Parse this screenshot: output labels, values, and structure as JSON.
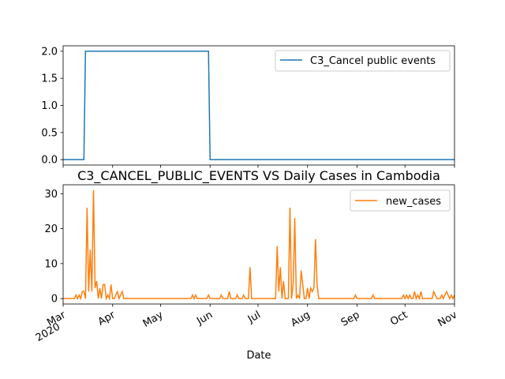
{
  "chart_data": [
    {
      "type": "line",
      "title": "",
      "xlabel": "",
      "ylabel": "",
      "ylim": [
        -0.1,
        2.1
      ],
      "yticks": [
        "0.0",
        "0.5",
        "1.0",
        "1.5",
        "2.0"
      ],
      "ytick_values": [
        0.0,
        0.5,
        1.0,
        1.5,
        2.0
      ],
      "legend_position": "top-right",
      "series": [
        {
          "name": "C3_Cancel public events",
          "color": "#1f77b4",
          "points": [
            [
              "2020-03-01",
              0
            ],
            [
              "2020-03-14",
              0
            ],
            [
              "2020-03-15",
              2
            ],
            [
              "2020-05-31",
              2
            ],
            [
              "2020-06-01",
              0
            ],
            [
              "2020-11-01",
              0
            ]
          ]
        }
      ]
    },
    {
      "type": "line",
      "title": "C3_CANCEL_PUBLIC_EVENTS VS Daily Cases in Cambodia",
      "xlabel": "Date",
      "ylabel": "",
      "ylim": [
        -1.55,
        32.55
      ],
      "yticks": [
        "0",
        "10",
        "20",
        "30"
      ],
      "ytick_values": [
        0,
        10,
        20,
        30
      ],
      "xlim": [
        "2020-03-01",
        "2020-11-01"
      ],
      "xticks": [
        {
          "date": "2020-03-01",
          "label": "Mar",
          "sublabel": "2020"
        },
        {
          "date": "2020-04-01",
          "label": "Apr",
          "sublabel": ""
        },
        {
          "date": "2020-05-01",
          "label": "May",
          "sublabel": ""
        },
        {
          "date": "2020-06-01",
          "label": "Jun",
          "sublabel": ""
        },
        {
          "date": "2020-07-01",
          "label": "Jul",
          "sublabel": ""
        },
        {
          "date": "2020-08-01",
          "label": "Aug",
          "sublabel": ""
        },
        {
          "date": "2020-09-01",
          "label": "Sep",
          "sublabel": ""
        },
        {
          "date": "2020-10-01",
          "label": "Oct",
          "sublabel": ""
        },
        {
          "date": "2020-11-01",
          "label": "Nov",
          "sublabel": ""
        }
      ],
      "legend_position": "top-right",
      "series": [
        {
          "name": "new_cases",
          "color": "#ff7f0e",
          "points": [
            [
              "2020-03-01",
              0
            ],
            [
              "2020-03-08",
              0
            ],
            [
              "2020-03-09",
              1
            ],
            [
              "2020-03-10",
              0
            ],
            [
              "2020-03-11",
              1
            ],
            [
              "2020-03-12",
              0
            ],
            [
              "2020-03-13",
              2
            ],
            [
              "2020-03-14",
              2
            ],
            [
              "2020-03-15",
              0
            ],
            [
              "2020-03-16",
              26
            ],
            [
              "2020-03-17",
              2
            ],
            [
              "2020-03-18",
              14
            ],
            [
              "2020-03-19",
              2
            ],
            [
              "2020-03-20",
              31
            ],
            [
              "2020-03-21",
              3
            ],
            [
              "2020-03-22",
              5
            ],
            [
              "2020-03-23",
              0
            ],
            [
              "2020-03-24",
              3
            ],
            [
              "2020-03-25",
              0
            ],
            [
              "2020-03-26",
              4
            ],
            [
              "2020-03-27",
              4
            ],
            [
              "2020-03-28",
              0
            ],
            [
              "2020-03-29",
              1
            ],
            [
              "2020-03-30",
              0
            ],
            [
              "2020-03-31",
              4
            ],
            [
              "2020-04-01",
              0
            ],
            [
              "2020-04-02",
              0
            ],
            [
              "2020-04-03",
              1
            ],
            [
              "2020-04-04",
              2
            ],
            [
              "2020-04-05",
              0
            ],
            [
              "2020-04-06",
              1
            ],
            [
              "2020-04-07",
              2
            ],
            [
              "2020-04-08",
              0
            ],
            [
              "2020-05-20",
              0
            ],
            [
              "2020-05-21",
              1
            ],
            [
              "2020-05-22",
              0
            ],
            [
              "2020-05-23",
              1
            ],
            [
              "2020-05-24",
              0
            ],
            [
              "2020-05-30",
              0
            ],
            [
              "2020-05-31",
              1
            ],
            [
              "2020-06-01",
              0
            ],
            [
              "2020-06-07",
              0
            ],
            [
              "2020-06-08",
              1
            ],
            [
              "2020-06-09",
              0
            ],
            [
              "2020-06-12",
              0
            ],
            [
              "2020-06-13",
              2
            ],
            [
              "2020-06-14",
              0
            ],
            [
              "2020-06-17",
              0
            ],
            [
              "2020-06-18",
              1
            ],
            [
              "2020-06-19",
              0
            ],
            [
              "2020-06-21",
              0
            ],
            [
              "2020-06-22",
              1
            ],
            [
              "2020-06-23",
              0
            ],
            [
              "2020-06-25",
              0
            ],
            [
              "2020-06-26",
              9
            ],
            [
              "2020-06-27",
              0
            ],
            [
              "2020-07-12",
              0
            ],
            [
              "2020-07-13",
              15
            ],
            [
              "2020-07-14",
              2
            ],
            [
              "2020-07-15",
              9
            ],
            [
              "2020-07-16",
              0
            ],
            [
              "2020-07-17",
              5
            ],
            [
              "2020-07-18",
              0
            ],
            [
              "2020-07-20",
              0
            ],
            [
              "2020-07-21",
              26
            ],
            [
              "2020-07-22",
              0
            ],
            [
              "2020-07-23",
              4
            ],
            [
              "2020-07-24",
              23
            ],
            [
              "2020-07-25",
              0
            ],
            [
              "2020-07-26",
              1
            ],
            [
              "2020-07-27",
              0
            ],
            [
              "2020-07-28",
              8
            ],
            [
              "2020-07-29",
              4
            ],
            [
              "2020-07-30",
              0
            ],
            [
              "2020-07-31",
              0
            ],
            [
              "2020-08-01",
              3
            ],
            [
              "2020-08-02",
              0
            ],
            [
              "2020-08-03",
              3
            ],
            [
              "2020-08-04",
              2
            ],
            [
              "2020-08-05",
              3
            ],
            [
              "2020-08-06",
              17
            ],
            [
              "2020-08-07",
              4
            ],
            [
              "2020-08-08",
              0
            ],
            [
              "2020-08-30",
              0
            ],
            [
              "2020-08-31",
              1
            ],
            [
              "2020-09-01",
              0
            ],
            [
              "2020-09-10",
              0
            ],
            [
              "2020-09-11",
              1
            ],
            [
              "2020-09-12",
              0
            ],
            [
              "2020-09-29",
              0
            ],
            [
              "2020-09-30",
              1
            ],
            [
              "2020-10-01",
              0
            ],
            [
              "2020-10-02",
              1
            ],
            [
              "2020-10-03",
              0
            ],
            [
              "2020-10-04",
              1
            ],
            [
              "2020-10-05",
              0
            ],
            [
              "2020-10-06",
              0
            ],
            [
              "2020-10-07",
              2
            ],
            [
              "2020-10-08",
              0
            ],
            [
              "2020-10-09",
              1
            ],
            [
              "2020-10-10",
              0
            ],
            [
              "2020-10-11",
              2
            ],
            [
              "2020-10-12",
              0
            ],
            [
              "2020-10-18",
              0
            ],
            [
              "2020-10-19",
              2
            ],
            [
              "2020-10-20",
              1
            ],
            [
              "2020-10-21",
              0
            ],
            [
              "2020-10-23",
              0
            ],
            [
              "2020-10-24",
              1
            ],
            [
              "2020-10-25",
              0
            ],
            [
              "2020-10-27",
              2
            ],
            [
              "2020-10-28",
              1
            ],
            [
              "2020-10-29",
              0
            ],
            [
              "2020-10-30",
              1
            ],
            [
              "2020-10-31",
              0
            ],
            [
              "2020-11-01",
              1
            ]
          ]
        }
      ]
    }
  ]
}
